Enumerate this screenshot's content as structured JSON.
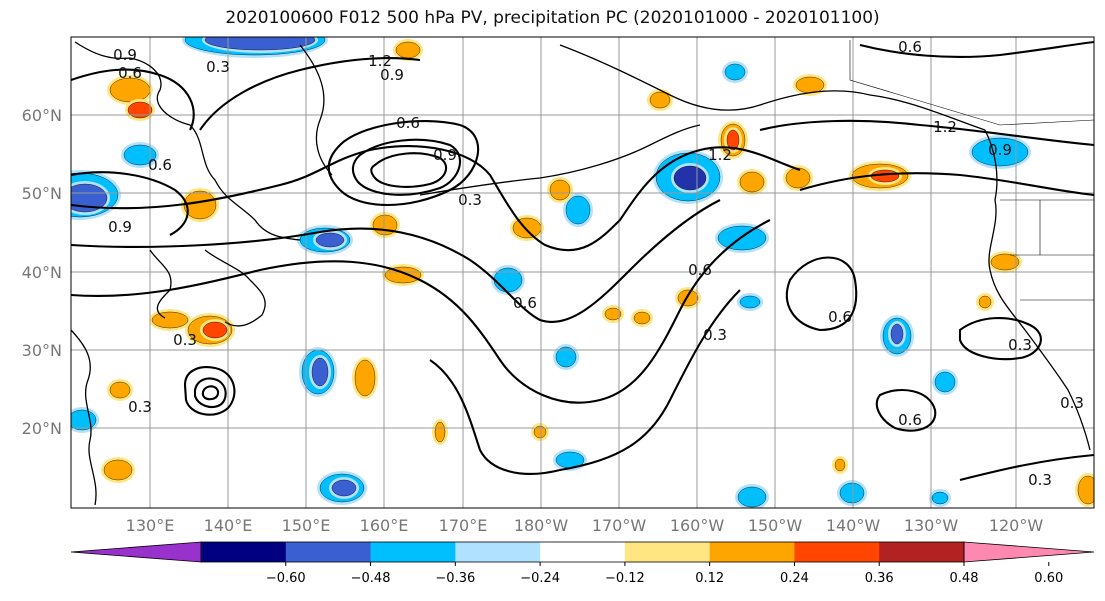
{
  "title": "2020100600 F012 500 hPa PV, precipitation PC (2020101000 - 2020101100)",
  "map": {
    "lon_labels": [
      "130°E",
      "140°E",
      "150°E",
      "160°E",
      "170°E",
      "180°W",
      "170°W",
      "160°W",
      "150°W",
      "140°W",
      "130°W",
      "120°W"
    ],
    "lat_labels": [
      "60°N",
      "50°N",
      "40°N",
      "30°N",
      "20°N"
    ],
    "contour_labels": [
      "0.9",
      "0.6",
      "0.3",
      "1.2",
      "0.9",
      "0.6",
      "0.9",
      "0.3",
      "1.2",
      "0.6",
      "0.3",
      "0.6",
      "0.6",
      "0.3",
      "0.6",
      "0.3",
      "0.6",
      "0.3",
      "0.3",
      "0.9",
      "1.2",
      "0.9",
      "0.3",
      "0.6"
    ],
    "fill_colors": {
      "neg_strong": "#2233aa",
      "neg_mid": "#3a5fd0",
      "neg_light": "#00bfff",
      "neg_faint": "#b0e2ff",
      "pos_faint": "#ffe680",
      "pos_light": "#ffa500",
      "pos_mid": "#ff4500",
      "pos_strong": "#b22222"
    }
  },
  "colorbar": {
    "tick_labels": [
      "−0.60",
      "−0.48",
      "−0.36",
      "−0.24",
      "−0.12",
      "0.12",
      "0.24",
      "0.36",
      "0.48",
      "0.60"
    ],
    "colors": [
      "#9932cc",
      "#000080",
      "#3a5fd0",
      "#00bfff",
      "#b0e2ff",
      "#ffffff",
      "#ffe680",
      "#ffa500",
      "#ff4500",
      "#b22222",
      "#ff88b0"
    ]
  }
}
